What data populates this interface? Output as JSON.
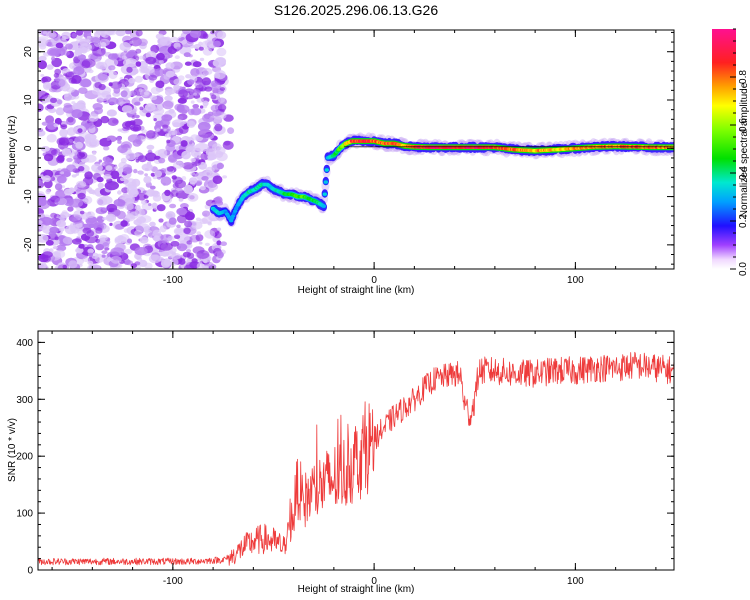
{
  "page_title": "S126.2025.296.06.13.G26",
  "colors": {
    "line": "#ee3b3b",
    "axis": "#000000",
    "background": "#ffffff"
  },
  "chart_data": [
    {
      "type": "heatmap",
      "title": "S126.2025.296.06.13.G26",
      "xlabel": "Height of straight line (km)",
      "ylabel": "Frequency (Hz)",
      "xlim": [
        -167,
        149
      ],
      "ylim": [
        -25,
        24.5
      ],
      "xticks": [
        -100,
        0,
        100
      ],
      "xtick_labels": [
        "-100",
        "0",
        "100"
      ],
      "yticks": [
        -20,
        -10,
        0,
        10,
        20
      ],
      "ytick_labels": [
        "-20",
        "-10",
        "0",
        "10",
        "20"
      ],
      "noise_region_x": [
        -167,
        -75
      ],
      "ridge": {
        "x": [
          -80,
          -77,
          -74,
          -71,
          -68,
          -65,
          -62,
          -59,
          -56,
          -53,
          -50,
          -47,
          -44,
          -41,
          -38,
          -35,
          -32,
          -29,
          -27,
          -25,
          -23,
          -20,
          -17,
          -14,
          -11,
          -8,
          -4,
          0,
          5,
          10,
          15,
          20,
          30,
          40,
          50,
          60,
          70,
          80,
          90,
          100,
          110,
          120,
          130,
          140,
          149
        ],
        "freq": [
          -12.5,
          -13.5,
          -13,
          -15,
          -12,
          -10,
          -9,
          -8.5,
          -7.5,
          -7.5,
          -8.5,
          -9,
          -9.5,
          -9.5,
          -10,
          -10,
          -10.5,
          -11,
          -11.5,
          -12,
          -2,
          -1.5,
          0,
          1,
          1.5,
          1.5,
          1.5,
          1.5,
          1,
          1,
          0.5,
          0.3,
          0.2,
          0.2,
          0.2,
          0.2,
          -0.3,
          -0.5,
          -0.3,
          0,
          0.3,
          0.4,
          0.3,
          0.2,
          0.2
        ],
        "amplitude": [
          0.35,
          0.35,
          0.3,
          0.3,
          0.3,
          0.35,
          0.4,
          0.4,
          0.4,
          0.35,
          0.35,
          0.4,
          0.45,
          0.5,
          0.55,
          0.55,
          0.45,
          0.45,
          0.4,
          0.35,
          0.35,
          0.4,
          0.55,
          0.7,
          0.85,
          0.9,
          0.92,
          0.85,
          0.85,
          0.9,
          0.75,
          0.9,
          0.95,
          0.95,
          0.95,
          0.9,
          0.85,
          0.8,
          0.75,
          0.8,
          0.8,
          0.85,
          0.85,
          0.85,
          0.8
        ]
      },
      "colorbar": {
        "label": "Normalized spectral amplitude",
        "ticks": [
          0.0,
          0.2,
          0.4,
          0.6,
          0.8
        ],
        "tick_labels": [
          "0.0",
          "0.2",
          "0.4",
          "0.6",
          "0.8"
        ],
        "range": [
          0,
          1
        ]
      }
    },
    {
      "type": "line",
      "xlabel": "Height of straight line (km)",
      "ylabel": "SNR (10 * v/v)",
      "xlim": [
        -167,
        149
      ],
      "ylim": [
        0,
        420
      ],
      "xticks": [
        -100,
        0,
        100
      ],
      "xtick_labels": [
        "-100",
        "0",
        "100"
      ],
      "yticks": [
        0,
        100,
        200,
        300,
        400
      ],
      "ytick_labels": [
        "0",
        "100",
        "200",
        "300",
        "400"
      ],
      "series": [
        {
          "name": "SNR",
          "color": "#ee3b3b",
          "x": [
            -167,
            -150,
            -130,
            -110,
            -90,
            -75,
            -70,
            -65,
            -60,
            -55,
            -50,
            -45,
            -40,
            -38,
            -35,
            -30,
            -25,
            -20,
            -15,
            -10,
            -5,
            0,
            5,
            10,
            15,
            20,
            25,
            30,
            35,
            40,
            43,
            45,
            48,
            50,
            52,
            55,
            60,
            70,
            80,
            90,
            100,
            110,
            120,
            130,
            140,
            149
          ],
          "y": [
            15,
            15,
            15,
            15,
            15,
            18,
            25,
            40,
            50,
            55,
            50,
            40,
            100,
            150,
            120,
            140,
            150,
            160,
            170,
            190,
            210,
            230,
            250,
            270,
            285,
            300,
            320,
            335,
            340,
            345,
            340,
            290,
            270,
            300,
            350,
            350,
            350,
            345,
            345,
            350,
            350,
            355,
            355,
            360,
            355,
            350
          ]
        }
      ]
    }
  ]
}
